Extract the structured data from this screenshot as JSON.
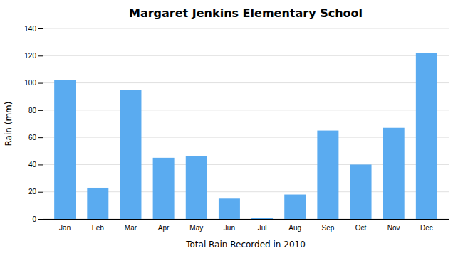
{
  "chart_data": {
    "type": "bar",
    "title": "Margaret Jenkins Elementary School",
    "xlabel": "Total Rain Recorded in 2010",
    "ylabel": "Rain (mm)",
    "categories": [
      "Jan",
      "Feb",
      "Mar",
      "Apr",
      "May",
      "Jun",
      "Jul",
      "Aug",
      "Sep",
      "Oct",
      "Nov",
      "Dec"
    ],
    "values": [
      102,
      23,
      95,
      45,
      46,
      15,
      1,
      18,
      65,
      40,
      67,
      122
    ],
    "color": "#5aabf0",
    "ylim": [
      0,
      140
    ],
    "yticks": [
      0,
      20,
      40,
      60,
      80,
      100,
      120,
      140
    ],
    "grid": true
  }
}
